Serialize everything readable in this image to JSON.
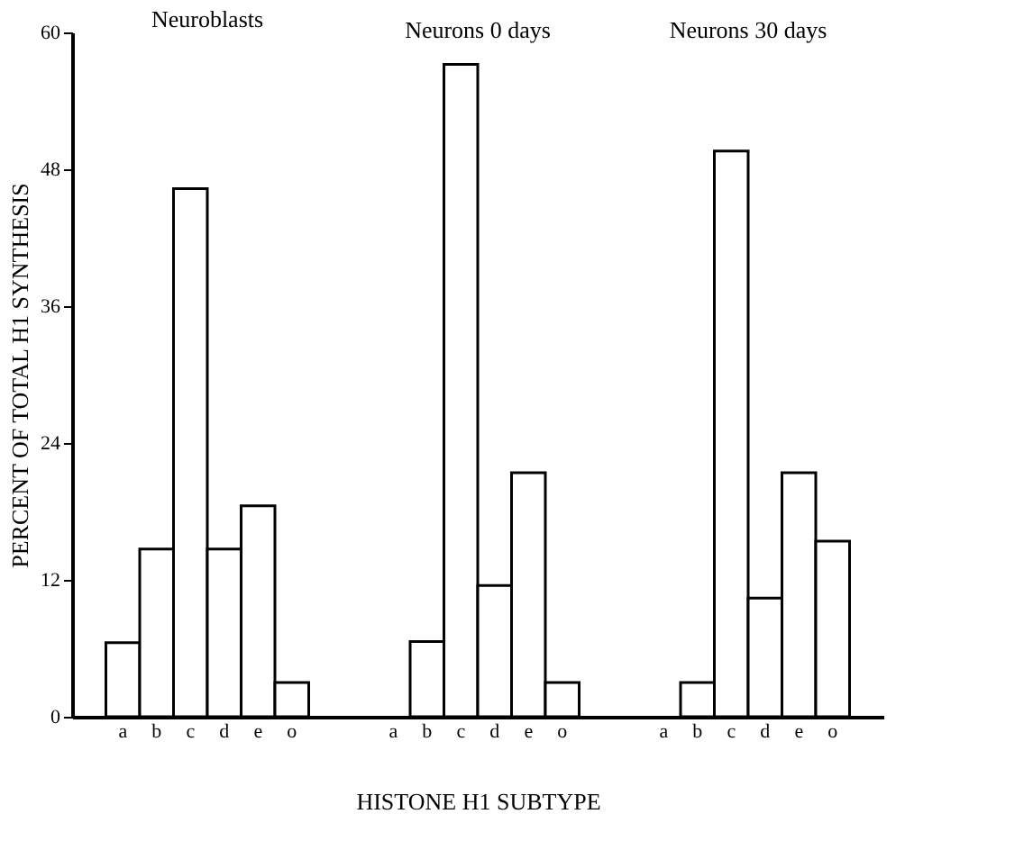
{
  "chart_data": [
    {
      "type": "bar",
      "title": "Neuroblasts",
      "ylabel": "PERCENT OF TOTAL H1 SYNTHESIS",
      "categories": [
        "a",
        "b",
        "c",
        "d",
        "e",
        "o"
      ],
      "values": [
        6.5,
        14.7,
        46.3,
        14.7,
        18.5,
        3.0
      ],
      "color": "#ffffff",
      "ylim": [
        0,
        60
      ],
      "yticks": [
        0,
        12,
        24,
        36,
        48,
        60
      ],
      "grid": false
    },
    {
      "type": "bar",
      "title": "Neurons 0 days",
      "xlabel": "HISTONE H1 SUBTYPE",
      "categories": [
        "a",
        "b",
        "c",
        "d",
        "e",
        "o"
      ],
      "values": [
        null,
        6.6,
        57.2,
        11.5,
        21.4,
        3.0
      ],
      "color": "#ffffff",
      "ylim": [
        0,
        60
      ],
      "tick_labels": "x",
      "grid": false
    },
    {
      "type": "bar",
      "title": "Neurons 30 days",
      "categories": [
        "a",
        "b",
        "c",
        "d",
        "e",
        "o"
      ],
      "values": [
        null,
        3.0,
        49.6,
        10.4,
        21.4,
        15.4
      ],
      "color": "#ffffff",
      "ylim": [
        0,
        60
      ],
      "tick_labels": "x",
      "grid": false
    }
  ]
}
